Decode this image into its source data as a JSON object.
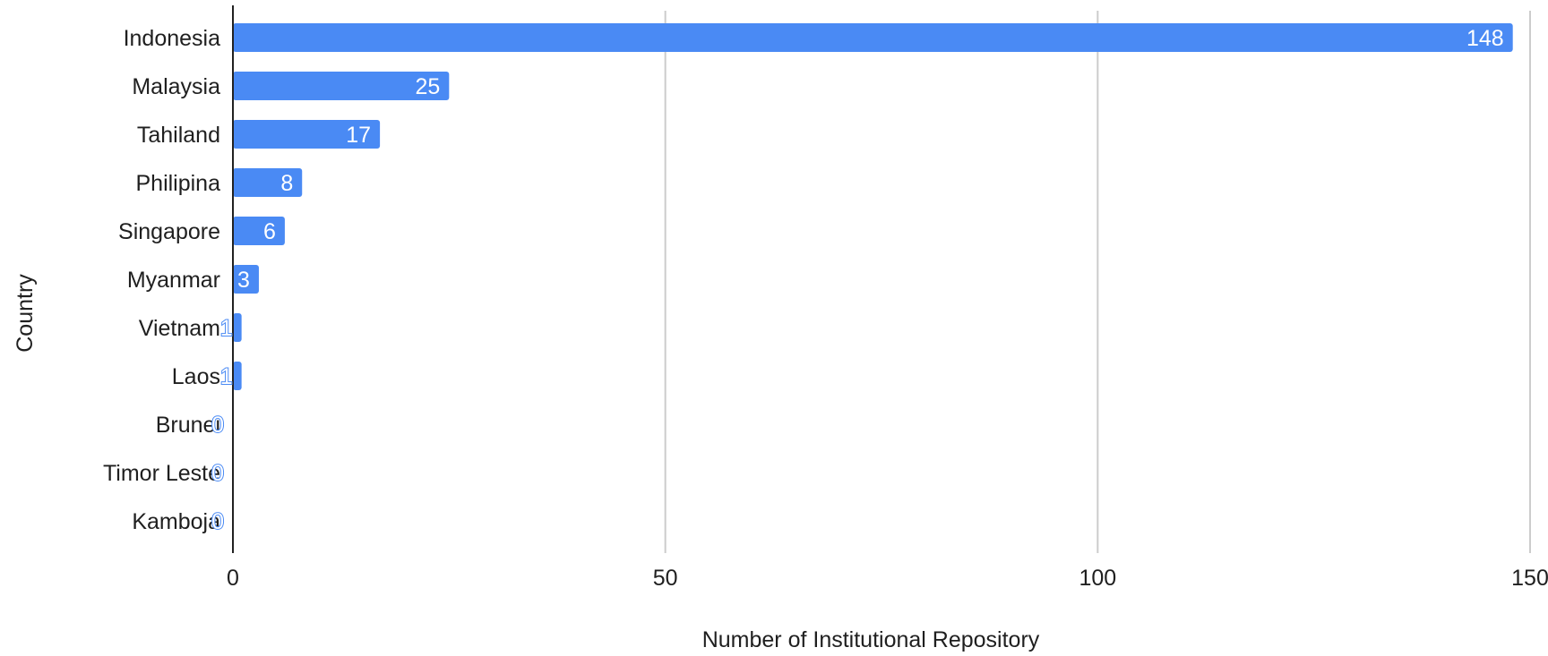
{
  "chart_data": {
    "type": "bar",
    "orientation": "horizontal",
    "categories": [
      "Indonesia",
      "Malaysia",
      "Tahiland",
      "Philipina",
      "Singapore",
      "Myanmar",
      "Vietnam",
      "Laos",
      "Brunei",
      "Timor Leste",
      "Kamboja"
    ],
    "values": [
      148,
      25,
      17,
      8,
      6,
      3,
      1,
      1,
      0,
      0,
      0
    ],
    "title": "",
    "xlabel": "Number of Institutional Repository",
    "ylabel": "Country",
    "xlim": [
      0,
      150
    ],
    "xticks": [
      0,
      50,
      100,
      150
    ],
    "grid": true,
    "legend": "none",
    "data_labels": true,
    "bar_color": "#4a8af4",
    "label_color": "#ffffff",
    "outside_label_color": "#4a8af4"
  }
}
